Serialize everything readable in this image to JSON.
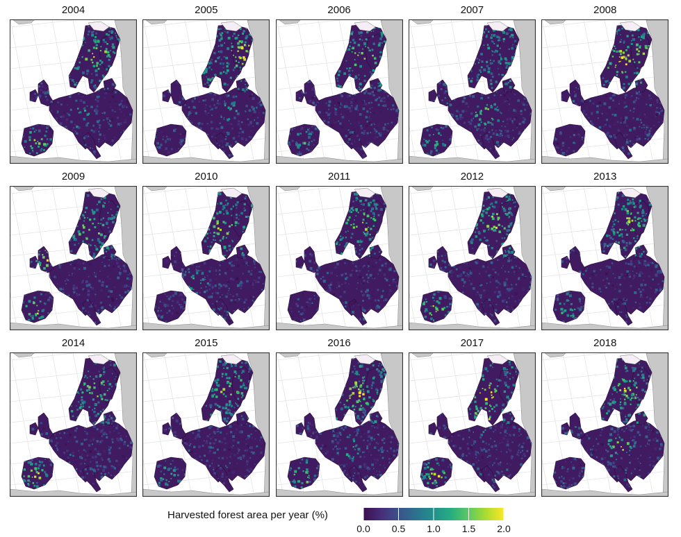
{
  "figure": {
    "panel_years": [
      "2004",
      "2005",
      "2006",
      "2007",
      "2008",
      "2009",
      "2010",
      "2011",
      "2012",
      "2013",
      "2014",
      "2015",
      "2016",
      "2017",
      "2018"
    ],
    "colors": {
      "sea": "#ffffff",
      "non_study_land": "#c8c8c8",
      "graticule": "#e4e4e4",
      "panel_border": "#333333",
      "snow_region": "#f5eef4"
    },
    "panels": [
      {
        "year": "2004",
        "hotspots": [
          "scandinavia-moderate",
          "iberia-high",
          "central-moderate"
        ]
      },
      {
        "year": "2005",
        "hotspots": [
          "finland-high",
          "poland-moderate"
        ]
      },
      {
        "year": "2006",
        "hotspots": [
          "scandinavia-moderate",
          "iberia-moderate"
        ]
      },
      {
        "year": "2007",
        "hotspots": [
          "central-europe-high",
          "iberia-moderate"
        ]
      },
      {
        "year": "2008",
        "hotspots": [
          "sweden-high",
          "finland-moderate"
        ]
      },
      {
        "year": "2009",
        "hotspots": [
          "sweden-moderate",
          "iberia-high",
          "uk-high"
        ]
      },
      {
        "year": "2010",
        "hotspots": [
          "sweden-moderate",
          "france-moderate"
        ]
      },
      {
        "year": "2011",
        "hotspots": [
          "scandinavia-moderate"
        ]
      },
      {
        "year": "2012",
        "hotspots": [
          "iberia-high",
          "scandinavia-moderate"
        ]
      },
      {
        "year": "2013",
        "hotspots": [
          "scandinavia-moderate",
          "iberia-moderate"
        ]
      },
      {
        "year": "2014",
        "hotspots": [
          "iberia-high",
          "scandinavia-moderate"
        ]
      },
      {
        "year": "2015",
        "hotspots": [
          "scandinavia-moderate",
          "iberia-moderate"
        ]
      },
      {
        "year": "2016",
        "hotspots": [
          "sweden-high",
          "iberia-high",
          "central-moderate"
        ]
      },
      {
        "year": "2017",
        "hotspots": [
          "finland-very-high",
          "sweden-high",
          "iberia-high"
        ]
      },
      {
        "year": "2018",
        "hotspots": [
          "central-europe-high",
          "scandinavia-moderate"
        ]
      }
    ]
  },
  "legend": {
    "title": "Harvested forest area per year (%)",
    "ticks": [
      {
        "value": 0.0,
        "label": "0.0"
      },
      {
        "value": 0.5,
        "label": "0.5"
      },
      {
        "value": 1.0,
        "label": "1.0"
      },
      {
        "value": 1.5,
        "label": "1.5"
      },
      {
        "value": 2.0,
        "label": "2.0"
      }
    ],
    "range": [
      0.0,
      2.0
    ],
    "colormap": [
      "#3b0f4f",
      "#472d7b",
      "#3b528b",
      "#2c728e",
      "#21918c",
      "#28ae80",
      "#5ec962",
      "#addc30",
      "#fde725"
    ]
  }
}
